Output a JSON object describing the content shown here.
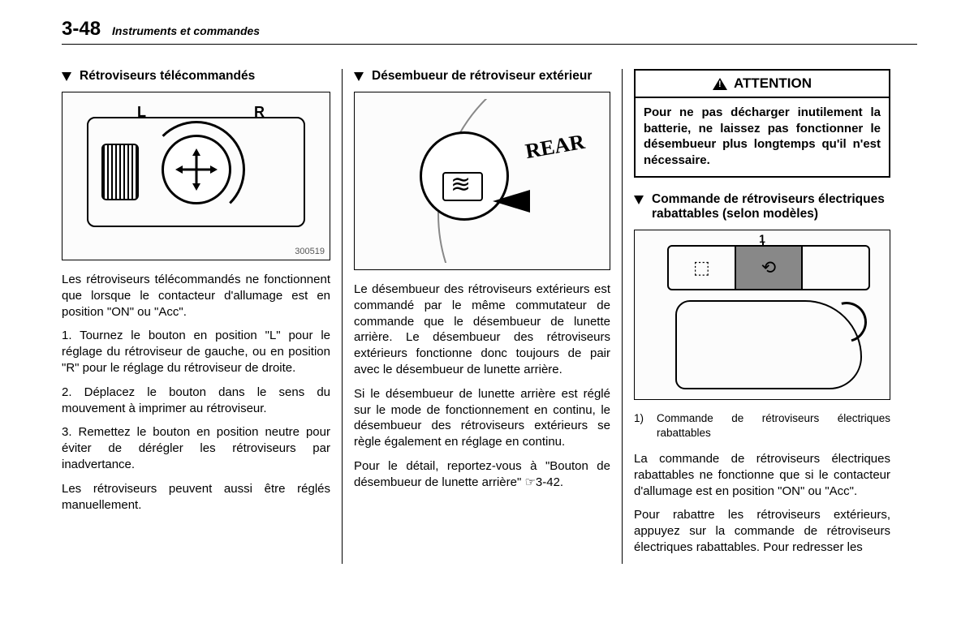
{
  "header": {
    "page_number": "3-48",
    "chapter_title": "Instruments et commandes"
  },
  "col1": {
    "heading": "Rétroviseurs télécommandés",
    "figure_id": "300519",
    "label_L": "L",
    "label_R": "R",
    "p1": "Les rétroviseurs télécommandés ne fonctionnent que lorsque le contacteur d'allumage est en position \"ON\" ou \"Acc\".",
    "p2": "1.  Tournez le bouton en position \"L\" pour le réglage du rétroviseur de gauche, ou en position \"R\" pour le réglage du rétroviseur de droite.",
    "p3": "2.  Déplacez le bouton dans le sens du mouvement à imprimer au rétroviseur.",
    "p4": "3.  Remettez le bouton en position neutre pour éviter de dérégler les rétroviseurs par inadvertance.",
    "p5": "Les rétroviseurs peuvent aussi être réglés manuellement."
  },
  "col2": {
    "heading": "Désembueur de rétroviseur extérieur",
    "rear_label": "REAR",
    "p1": "Le désembueur des rétroviseurs extérieurs est commandé par le même commutateur de commande que le désembueur de lunette arrière. Le désembueur des rétroviseurs extérieurs fonctionne donc toujours de pair avec le désembueur de lunette arrière.",
    "p2": "Si le désembueur de lunette arrière est réglé sur le mode de fonctionnement en continu, le désembueur des rétroviseurs extérieurs se règle également en réglage en continu.",
    "p3": "Pour le détail, reportez-vous à \"Bouton de désembueur de lunette arrière\" ☞3-42."
  },
  "col3": {
    "attention_title": "ATTENTION",
    "attention_body": "Pour ne pas décharger inutilement la batterie, ne laissez pas fonctionner le désembueur plus longtemps qu'il n'est nécessaire.",
    "heading": "Commande de rétroviseurs électriques rabattables (selon modèles)",
    "callout_1": "1",
    "caption_num": "1)",
    "caption_text": "Commande de rétroviseurs électriques rabattables",
    "p1": "La commande de rétroviseurs électriques rabattables ne fonctionne que si le contacteur d'allumage est en position \"ON\" ou \"Acc\".",
    "p2": "Pour rabattre les rétroviseurs extérieurs, appuyez sur la commande de rétroviseurs électriques rabattables. Pour redresser les"
  }
}
